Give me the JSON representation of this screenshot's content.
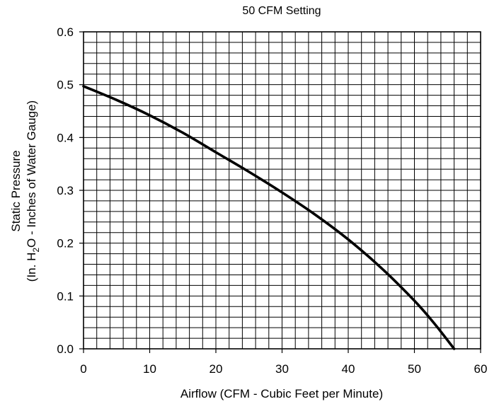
{
  "chart_data": {
    "type": "line",
    "title": "50 CFM Setting",
    "xlabel": "Airflow (CFM - Cubic Feet per Minute)",
    "ylabel_line1": "Static Pressure",
    "ylabel_line2_prefix": "(In. H",
    "ylabel_line2_sub": "2",
    "ylabel_line2_suffix": "O - Inches of Water Gauge)",
    "xlim": [
      0,
      60
    ],
    "ylim": [
      0,
      0.6
    ],
    "xticks": [
      0,
      10,
      20,
      30,
      40,
      50,
      60
    ],
    "xtick_labels": [
      "0",
      "10",
      "20",
      "30",
      "40",
      "50",
      "60"
    ],
    "yticks": [
      0.0,
      0.1,
      0.2,
      0.3,
      0.4,
      0.5,
      0.6
    ],
    "ytick_labels": [
      "0.0",
      "0.1",
      "0.2",
      "0.3",
      "0.4",
      "0.5",
      "0.6"
    ],
    "grid": true,
    "grid_minor_x_step": 2,
    "grid_minor_y_step": 0.02,
    "series": [
      {
        "color": "#000000",
        "x": [
          0,
          5,
          10,
          15,
          20,
          25,
          30,
          35,
          40,
          45,
          50,
          53,
          56
        ],
        "y": [
          0.497,
          0.471,
          0.442,
          0.409,
          0.372,
          0.335,
          0.296,
          0.254,
          0.207,
          0.153,
          0.091,
          0.048,
          0.0
        ]
      }
    ]
  }
}
